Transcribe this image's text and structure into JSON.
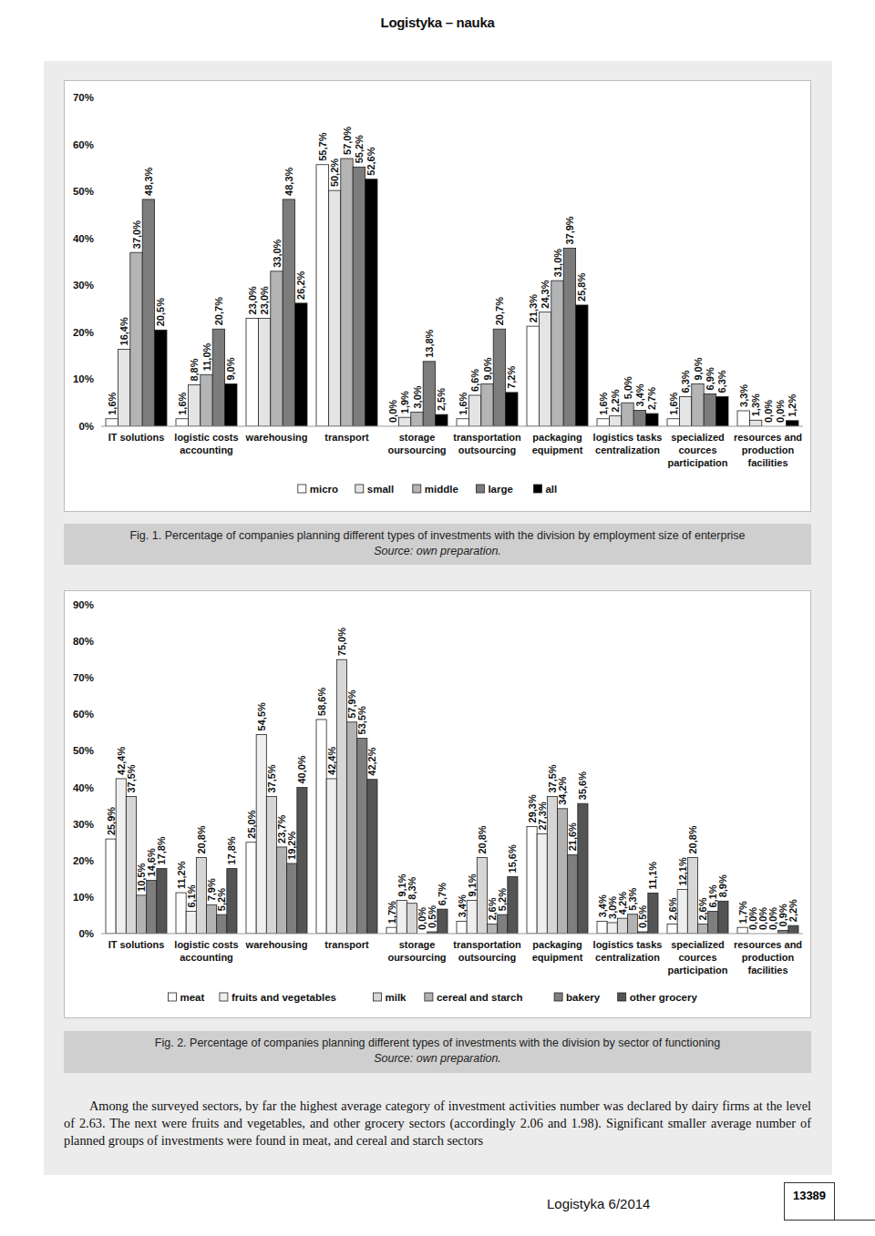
{
  "header": {
    "journal": "Logistyka – nauka"
  },
  "chart_data": [
    {
      "type": "bar",
      "categories": [
        "IT solutions",
        "logistic costs accounting",
        "warehousing",
        "transport",
        "storage oursourcing",
        "transportation outsourcing",
        "packaging equipment",
        "logistics tasks centralization",
        "specialized cources participation",
        "resources and production facilities"
      ],
      "series": [
        {
          "name": "micro",
          "color": "#ffffff",
          "values": [
            1.6,
            1.6,
            23.0,
            55.7,
            0.0,
            1.6,
            21.3,
            1.6,
            1.6,
            3.3
          ],
          "value_labels": [
            "1,6%",
            "1,6%",
            "23,0%",
            "55,7%",
            "0,0%",
            "1,6%",
            "21,3%",
            "1,6%",
            "1,6%",
            "3,3%"
          ]
        },
        {
          "name": "small",
          "color": "#e4e4e4",
          "values": [
            16.4,
            8.8,
            23.0,
            50.2,
            1.9,
            6.6,
            24.3,
            2.2,
            6.3,
            1.3
          ],
          "value_labels": [
            "16,4%",
            "8,8%",
            "23,0%",
            "50,2%",
            "1,9%",
            "6,6%",
            "24,3%",
            "2,2%",
            "6,3%",
            "1,3%"
          ]
        },
        {
          "name": "middle",
          "color": "#b4b4b4",
          "values": [
            37.0,
            11.0,
            33.0,
            57.0,
            3.0,
            9.0,
            31.0,
            5.0,
            9.0,
            0.0
          ],
          "value_labels": [
            "37,0%",
            "11,0%",
            "33,0%",
            "57,0%",
            "3,0%",
            "9,0%",
            "31,0%",
            "5,0%",
            "9,0%",
            "0,0%"
          ]
        },
        {
          "name": "large",
          "color": "#7c7c7c",
          "values": [
            48.3,
            20.7,
            48.3,
            55.2,
            13.8,
            20.7,
            37.9,
            3.4,
            6.9,
            0.0
          ],
          "value_labels": [
            "48,3%",
            "20,7%",
            "48,3%",
            "55,2%",
            "13,8%",
            "20,7%",
            "37,9%",
            "3,4%",
            "6,9%",
            "0,0%"
          ]
        },
        {
          "name": "all",
          "color": "#000000",
          "values": [
            20.5,
            9.0,
            26.2,
            52.6,
            2.5,
            7.2,
            25.8,
            2.7,
            6.3,
            1.2
          ],
          "value_labels": [
            "20,5%",
            "9,0%",
            "26,2%",
            "52,6%",
            "2,5%",
            "7,2%",
            "25,8%",
            "2,7%",
            "6,3%",
            "1,2%"
          ]
        }
      ],
      "ylim": [
        0,
        70
      ],
      "yticks": [
        {
          "value": 0,
          "label": "0%"
        },
        {
          "value": 10,
          "label": "10%"
        },
        {
          "value": 20,
          "label": "20%"
        },
        {
          "value": 30,
          "label": "30%"
        },
        {
          "value": 40,
          "label": "40%"
        },
        {
          "value": 50,
          "label": "50%"
        },
        {
          "value": 60,
          "label": "60%"
        },
        {
          "value": 70,
          "label": "70%"
        }
      ],
      "grid": false,
      "data_labels": true,
      "legend": "bottom"
    },
    {
      "type": "bar",
      "categories": [
        "IT solutions",
        "logistic costs accounting",
        "warehousing",
        "transport",
        "storage oursourcing",
        "transportation outsourcing",
        "packaging equipment",
        "logistics tasks centralization",
        "specialized cources participation",
        "resources and production facilities"
      ],
      "series": [
        {
          "name": "meat",
          "color": "#ffffff",
          "values": [
            25.9,
            11.2,
            25.0,
            58.6,
            1.7,
            3.4,
            29.3,
            3.4,
            2.6,
            1.7
          ],
          "value_labels": [
            "25,9%",
            "11,2%",
            "25,0%",
            "58,6%",
            "1,7%",
            "3,4%",
            "29,3%",
            "3,4%",
            "2,6%",
            "1,7%"
          ]
        },
        {
          "name": "fruits and vegetables",
          "color": "#efefef",
          "values": [
            42.4,
            6.1,
            54.5,
            42.4,
            9.1,
            9.1,
            27.3,
            3.0,
            12.1,
            0.0
          ],
          "value_labels": [
            "42,4%",
            "6,1%",
            "54,5%",
            "42,4%",
            "9,1%",
            "9,1%",
            "27,3%",
            "3,0%",
            "12,1%",
            "0,0%"
          ]
        },
        {
          "name": "milk",
          "color": "#d6d6d6",
          "values": [
            37.5,
            20.8,
            37.5,
            75.0,
            8.3,
            20.8,
            37.5,
            4.2,
            20.8,
            0.0
          ],
          "value_labels": [
            "37,5%",
            "20,8%",
            "37,5%",
            "75,0%",
            "8,3%",
            "20,8%",
            "37,5%",
            "4,2%",
            "20,8%",
            "0,0%"
          ]
        },
        {
          "name": "cereal and starch",
          "color": "#b2b2b2",
          "values": [
            10.5,
            7.9,
            23.7,
            57.9,
            0.0,
            2.6,
            34.2,
            5.3,
            2.6,
            0.0
          ],
          "value_labels": [
            "10,5%",
            "7,9%",
            "23,7%",
            "57,9%",
            "0,0%",
            "2,6%",
            "34,2%",
            "5,3%",
            "2,6%",
            "0,0%"
          ]
        },
        {
          "name": "bakery",
          "color": "#7e7e7e",
          "values": [
            14.6,
            5.2,
            19.2,
            53.5,
            0.5,
            5.2,
            21.6,
            0.5,
            6.1,
            0.9
          ],
          "value_labels": [
            "14,6%",
            "5,2%",
            "19,2%",
            "53,5%",
            "0,5%",
            "5,2%",
            "21,6%",
            "0,5%",
            "6,1%",
            "0,9%"
          ]
        },
        {
          "name": "other grocery",
          "color": "#545454",
          "values": [
            17.8,
            17.8,
            40.0,
            42.2,
            6.7,
            15.6,
            35.6,
            11.1,
            8.9,
            2.2
          ],
          "value_labels": [
            "17,8%",
            "17,8%",
            "40,0%",
            "42,2%",
            "6,7%",
            "15,6%",
            "35,6%",
            "11,1%",
            "8,9%",
            "2,2%"
          ]
        }
      ],
      "ylim": [
        0,
        90
      ],
      "yticks": [
        {
          "value": 0,
          "label": "0%"
        },
        {
          "value": 10,
          "label": "10%"
        },
        {
          "value": 20,
          "label": "20%"
        },
        {
          "value": 30,
          "label": "30%"
        },
        {
          "value": 40,
          "label": "40%"
        },
        {
          "value": 50,
          "label": "50%"
        },
        {
          "value": 60,
          "label": "60%"
        },
        {
          "value": 70,
          "label": "70%"
        },
        {
          "value": 80,
          "label": "80%"
        },
        {
          "value": 90,
          "label": "90%"
        }
      ],
      "grid": false,
      "data_labels": true,
      "legend": "bottom"
    }
  ],
  "figures": [
    {
      "caption": "Fig. 1. Percentage of companies planning different types of investments with the division by employment size of enterprise",
      "source": "Source: own preparation."
    },
    {
      "caption": "Fig. 2. Percentage of companies planning different types of investments with the division by sector of functioning",
      "source": "Source: own preparation."
    }
  ],
  "body": {
    "paragraph": "Among the surveyed sectors, by far the highest average category of investment activities number was declared by dairy firms at the level of 2.63. The next were fruits and vegetables, and other grocery sectors (accordingly 2.06 and 1.98). Significant smaller average number of planned groups of investments were found in meat, and cereal and starch sectors"
  },
  "footer": {
    "issue": "Logistyka 6/2014",
    "page": "13389"
  }
}
